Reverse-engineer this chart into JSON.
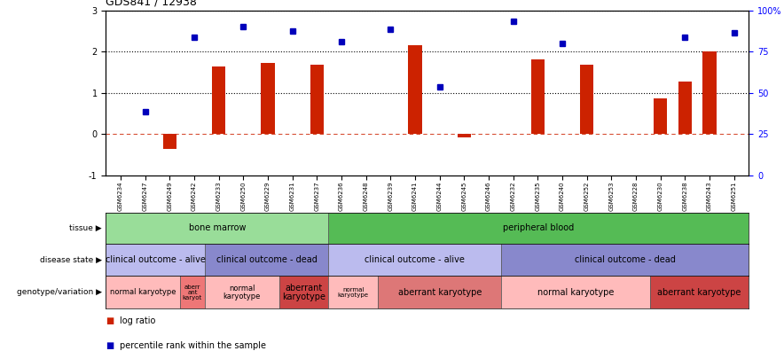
{
  "title": "GDS841 / 12938",
  "samples": [
    "GSM6234",
    "GSM6247",
    "GSM6249",
    "GSM6242",
    "GSM6233",
    "GSM6250",
    "GSM6229",
    "GSM6231",
    "GSM6237",
    "GSM6236",
    "GSM6248",
    "GSM6239",
    "GSM6241",
    "GSM6244",
    "GSM6245",
    "GSM6246",
    "GSM6232",
    "GSM6235",
    "GSM6240",
    "GSM6252",
    "GSM6253",
    "GSM6228",
    "GSM6230",
    "GSM6238",
    "GSM6243",
    "GSM6251"
  ],
  "log_ratio": [
    0.0,
    0.0,
    -0.35,
    0.0,
    1.65,
    0.0,
    1.72,
    0.0,
    1.68,
    0.0,
    0.0,
    0.0,
    2.15,
    0.0,
    -0.07,
    0.0,
    0.0,
    1.82,
    0.0,
    1.68,
    0.0,
    0.0,
    0.88,
    1.28,
    2.0,
    0.0
  ],
  "percentile": [
    null,
    0.55,
    null,
    2.35,
    null,
    2.6,
    null,
    2.5,
    null,
    2.25,
    null,
    2.55,
    null,
    1.15,
    null,
    null,
    2.75,
    null,
    2.2,
    null,
    null,
    null,
    null,
    2.35,
    null,
    2.45
  ],
  "tissue_groups": [
    {
      "label": "bone marrow",
      "start": 0,
      "end": 9,
      "color": "#99DD99"
    },
    {
      "label": "peripheral blood",
      "start": 9,
      "end": 26,
      "color": "#55BB55"
    }
  ],
  "disease_groups": [
    {
      "label": "clinical outcome - alive",
      "start": 0,
      "end": 4,
      "color": "#BBBBEE"
    },
    {
      "label": "clinical outcome - dead",
      "start": 4,
      "end": 9,
      "color": "#8888CC"
    },
    {
      "label": "clinical outcome - alive",
      "start": 9,
      "end": 16,
      "color": "#BBBBEE"
    },
    {
      "label": "clinical outcome - dead",
      "start": 16,
      "end": 26,
      "color": "#8888CC"
    }
  ],
  "geno_groups": [
    {
      "label": "normal karyotype",
      "start": 0,
      "end": 3,
      "color": "#FFBBBB",
      "fontsize": 6
    },
    {
      "label": "aberr\nant\nkaryot",
      "start": 3,
      "end": 4,
      "color": "#EE7777",
      "fontsize": 5
    },
    {
      "label": "normal\nkaryotype",
      "start": 4,
      "end": 7,
      "color": "#FFBBBB",
      "fontsize": 6
    },
    {
      "label": "aberrant\nkaryotype",
      "start": 7,
      "end": 9,
      "color": "#CC4444",
      "fontsize": 7
    },
    {
      "label": "normal\nkaryotype",
      "start": 9,
      "end": 11,
      "color": "#FFBBBB",
      "fontsize": 5
    },
    {
      "label": "aberrant karyotype",
      "start": 11,
      "end": 16,
      "color": "#DD7777",
      "fontsize": 7
    },
    {
      "label": "normal karyotype",
      "start": 16,
      "end": 22,
      "color": "#FFBBBB",
      "fontsize": 7
    },
    {
      "label": "aberrant karyotype",
      "start": 22,
      "end": 26,
      "color": "#CC4444",
      "fontsize": 7
    }
  ],
  "bar_color": "#CC2200",
  "dot_color": "#0000BB",
  "row_labels": [
    "tissue",
    "disease state",
    "genotype/variation"
  ]
}
